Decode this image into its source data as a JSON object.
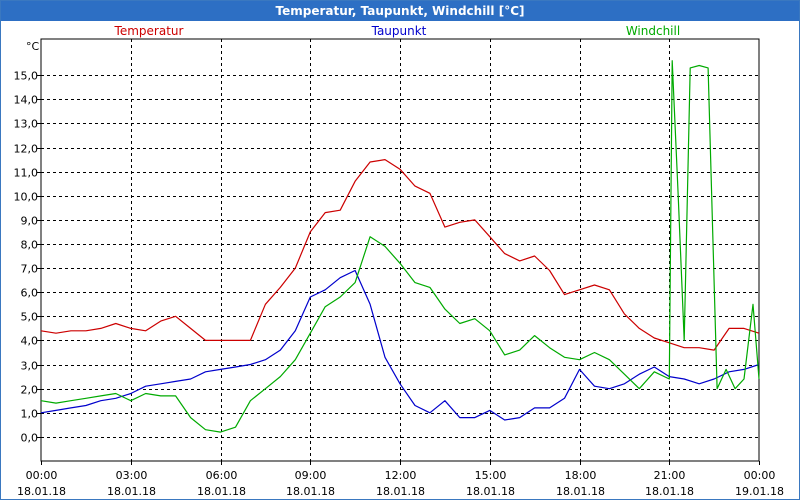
{
  "window": {
    "title": "Temperatur, Taupunkt, Windchill [°C]"
  },
  "chart_data": {
    "type": "line",
    "title": "Temperatur, Taupunkt, Windchill [°C]",
    "ylabel": "°C",
    "xlabel": "",
    "ylim": [
      -1.0,
      16.5
    ],
    "xlim": [
      0,
      24
    ],
    "yticks": [
      "0,0",
      "1,0",
      "2,0",
      "3,0",
      "4,0",
      "5,0",
      "6,0",
      "7,0",
      "8,0",
      "9,0",
      "10,0",
      "11,0",
      "12,0",
      "13,0",
      "14,0",
      "15,0"
    ],
    "ytick_values": [
      0,
      1,
      2,
      3,
      4,
      5,
      6,
      7,
      8,
      9,
      10,
      11,
      12,
      13,
      14,
      15
    ],
    "xticks": [
      {
        "t": 0,
        "time": "00:00",
        "date": "18.01.18"
      },
      {
        "t": 3,
        "time": "03:00",
        "date": "18.01.18"
      },
      {
        "t": 6,
        "time": "06:00",
        "date": "18.01.18"
      },
      {
        "t": 9,
        "time": "09:00",
        "date": "18.01.18"
      },
      {
        "t": 12,
        "time": "12:00",
        "date": "18.01.18"
      },
      {
        "t": 15,
        "time": "15:00",
        "date": "18.01.18"
      },
      {
        "t": 18,
        "time": "18:00",
        "date": "18.01.18"
      },
      {
        "t": 21,
        "time": "21:00",
        "date": "18.01.18"
      },
      {
        "t": 24,
        "time": "00:00",
        "date": "19.01.18"
      }
    ],
    "grid": true,
    "series": [
      {
        "name": "Temperatur",
        "color": "#cc0000",
        "legend_position": "left",
        "x": [
          0,
          0.5,
          1,
          1.5,
          2,
          2.5,
          3,
          3.5,
          4,
          4.5,
          5,
          5.5,
          6,
          6.5,
          7,
          7.5,
          8,
          8.5,
          9,
          9.5,
          10,
          10.5,
          11,
          11.5,
          12,
          12.5,
          13,
          13.5,
          14,
          14.5,
          15,
          15.5,
          16,
          16.5,
          17,
          17.5,
          18,
          18.5,
          19,
          19.5,
          20,
          20.5,
          21,
          21.5,
          22,
          22.5,
          23,
          23.5,
          24
        ],
        "values": [
          4.4,
          4.3,
          4.4,
          4.4,
          4.5,
          4.7,
          4.5,
          4.4,
          4.8,
          5.0,
          4.5,
          4.0,
          4.0,
          4.0,
          4.0,
          5.5,
          6.2,
          7.0,
          8.5,
          9.3,
          9.4,
          10.6,
          11.4,
          11.5,
          11.1,
          10.4,
          10.1,
          8.7,
          8.9,
          9.0,
          8.3,
          7.6,
          7.3,
          7.5,
          6.9,
          5.9,
          6.1,
          6.3,
          6.1,
          5.1,
          4.5,
          4.1,
          3.9,
          3.7,
          3.7,
          3.6,
          4.5,
          4.5,
          4.3
        ]
      },
      {
        "name": "Taupunkt",
        "color": "#0000cc",
        "legend_position": "center",
        "x": [
          0,
          0.5,
          1,
          1.5,
          2,
          2.5,
          3,
          3.5,
          4,
          4.5,
          5,
          5.5,
          6,
          6.5,
          7,
          7.5,
          8,
          8.5,
          9,
          9.5,
          10,
          10.5,
          11,
          11.5,
          12,
          12.5,
          13,
          13.5,
          14,
          14.5,
          15,
          15.5,
          16,
          16.5,
          17,
          17.5,
          18,
          18.5,
          19,
          19.5,
          20,
          20.5,
          21,
          21.5,
          22,
          22.5,
          23,
          23.5,
          24
        ],
        "values": [
          1.0,
          1.1,
          1.2,
          1.3,
          1.5,
          1.6,
          1.8,
          2.1,
          2.2,
          2.3,
          2.4,
          2.7,
          2.8,
          2.9,
          3.0,
          3.2,
          3.6,
          4.4,
          5.8,
          6.1,
          6.6,
          6.9,
          5.5,
          3.3,
          2.2,
          1.3,
          1.0,
          1.5,
          0.8,
          0.8,
          1.1,
          0.7,
          0.8,
          1.2,
          1.2,
          1.6,
          2.8,
          2.1,
          2.0,
          2.2,
          2.6,
          2.9,
          2.5,
          2.4,
          2.2,
          2.4,
          2.7,
          2.8,
          3.0
        ]
      },
      {
        "name": "Windchill",
        "color": "#00aa00",
        "legend_position": "right",
        "x": [
          0,
          0.5,
          1,
          1.5,
          2,
          2.5,
          3,
          3.5,
          4,
          4.5,
          5,
          5.5,
          6,
          6.5,
          7,
          7.5,
          8,
          8.5,
          9,
          9.5,
          10,
          10.5,
          11,
          11.5,
          12,
          12.5,
          13,
          13.5,
          14,
          14.5,
          15,
          15.5,
          16,
          16.5,
          17,
          17.5,
          18,
          18.5,
          19,
          19.5,
          20,
          20.5,
          21,
          21.1,
          21.3,
          21.5,
          21.7,
          22,
          22.3,
          22.6,
          22.9,
          23.2,
          23.5,
          23.8,
          24
        ],
        "values": [
          1.5,
          1.4,
          1.5,
          1.6,
          1.7,
          1.8,
          1.5,
          1.8,
          1.7,
          1.7,
          0.8,
          0.3,
          0.2,
          0.4,
          1.5,
          2.0,
          2.5,
          3.2,
          4.3,
          5.4,
          5.8,
          6.4,
          8.3,
          7.9,
          7.2,
          6.4,
          6.2,
          5.3,
          4.7,
          4.9,
          4.4,
          3.4,
          3.6,
          4.2,
          3.7,
          3.3,
          3.2,
          3.5,
          3.2,
          2.6,
          2.0,
          2.7,
          2.4,
          15.6,
          10.0,
          4.0,
          15.3,
          15.4,
          15.3,
          2.0,
          2.8,
          2.0,
          2.4,
          5.5,
          2.4
        ]
      }
    ]
  }
}
